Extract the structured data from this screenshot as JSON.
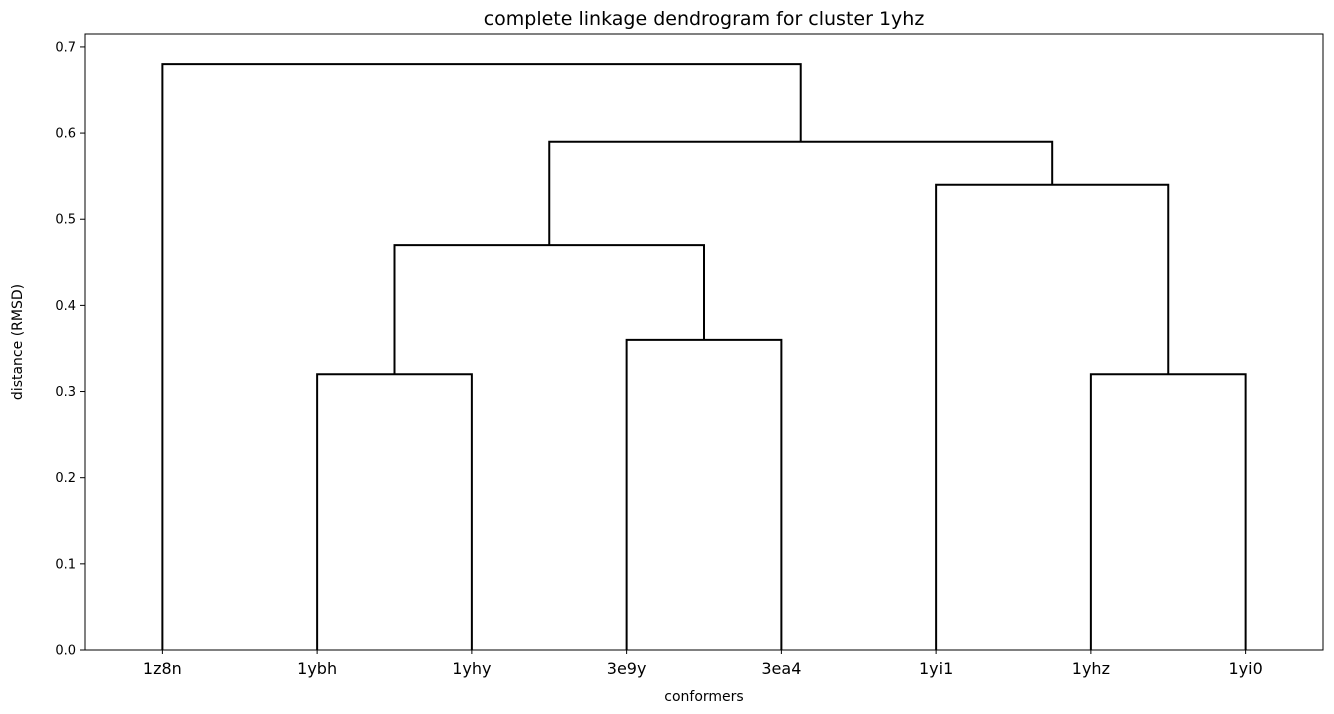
{
  "chart_data": {
    "type": "dendrogram",
    "title": "complete linkage dendrogram for cluster 1yhz",
    "xlabel": "conformers",
    "ylabel": "distance (RMSD)",
    "ylim": [
      0,
      0.715
    ],
    "yticks": [
      "0.0",
      "0.1",
      "0.2",
      "0.3",
      "0.4",
      "0.5",
      "0.6",
      "0.7"
    ],
    "ytick_values": [
      0.0,
      0.1,
      0.2,
      0.3,
      0.4,
      0.5,
      0.6,
      0.7
    ],
    "leaves": [
      "1z8n",
      "1ybh",
      "1yhy",
      "3e9y",
      "3ea4",
      "1yi1",
      "1yhz",
      "1yi0"
    ],
    "link_color": "#000000",
    "grid": false,
    "merges": [
      {
        "id": "m1",
        "left": "1ybh",
        "right": "1yhy",
        "height": 0.32
      },
      {
        "id": "m2",
        "left": "3e9y",
        "right": "3ea4",
        "height": 0.36
      },
      {
        "id": "m3",
        "left": "1yhz",
        "right": "1yi0",
        "height": 0.32
      },
      {
        "id": "m4",
        "left": "m1",
        "right": "m2",
        "height": 0.47
      },
      {
        "id": "m5",
        "left": "1yi1",
        "right": "m3",
        "height": 0.54
      },
      {
        "id": "m6",
        "left": "m4",
        "right": "m5",
        "height": 0.59
      },
      {
        "id": "m7",
        "left": "1z8n",
        "right": "m6",
        "height": 0.68
      }
    ]
  }
}
